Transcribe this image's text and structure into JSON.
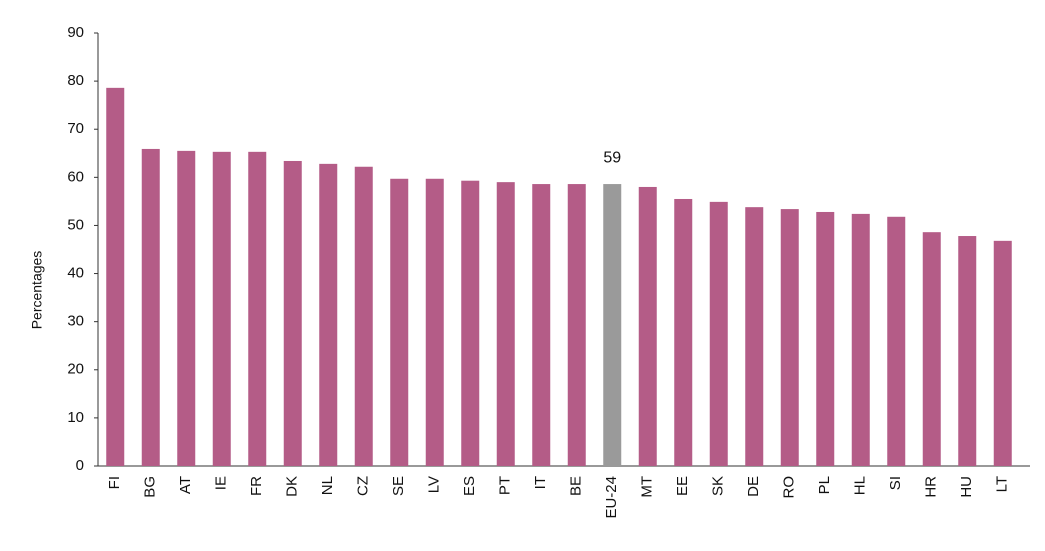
{
  "chart_data": {
    "type": "bar",
    "y_label": "Percentages",
    "categories": [
      "FI",
      "BG",
      "AT",
      "IE",
      "FR",
      "DK",
      "NL",
      "CZ",
      "SE",
      "LV",
      "ES",
      "PT",
      "IT",
      "BE",
      "EU-24",
      "MT",
      "EE",
      "SK",
      "DE",
      "RO",
      "PL",
      "HL",
      "SI",
      "HR",
      "HU",
      "LT"
    ],
    "values": [
      78.6,
      65.9,
      65.5,
      65.3,
      65.3,
      63.4,
      62.8,
      62.2,
      59.7,
      59.7,
      59.3,
      59.0,
      58.6,
      58.6,
      58.6,
      58.0,
      55.5,
      54.9,
      53.8,
      53.4,
      52.8,
      52.4,
      51.8,
      48.6,
      47.8,
      46.8
    ],
    "value_labels": [
      null,
      null,
      null,
      null,
      null,
      null,
      null,
      null,
      null,
      null,
      null,
      null,
      null,
      null,
      "59",
      null,
      null,
      null,
      null,
      null,
      null,
      null,
      null,
      null,
      null,
      null
    ],
    "colors": [
      "#b45c87",
      "#b45c87",
      "#b45c87",
      "#b45c87",
      "#b45c87",
      "#b45c87",
      "#b45c87",
      "#b45c87",
      "#b45c87",
      "#b45c87",
      "#b45c87",
      "#b45c87",
      "#b45c87",
      "#b45c87",
      "#9a9a9a",
      "#b45c87",
      "#b45c87",
      "#b45c87",
      "#b45c87",
      "#b45c87",
      "#b45c87",
      "#b45c87",
      "#b45c87",
      "#b45c87",
      "#b45c87",
      "#b45c87"
    ],
    "ylim": [
      0,
      90
    ],
    "yticks": [
      0,
      10,
      20,
      30,
      40,
      50,
      60,
      70,
      80,
      90
    ],
    "grid": false
  }
}
